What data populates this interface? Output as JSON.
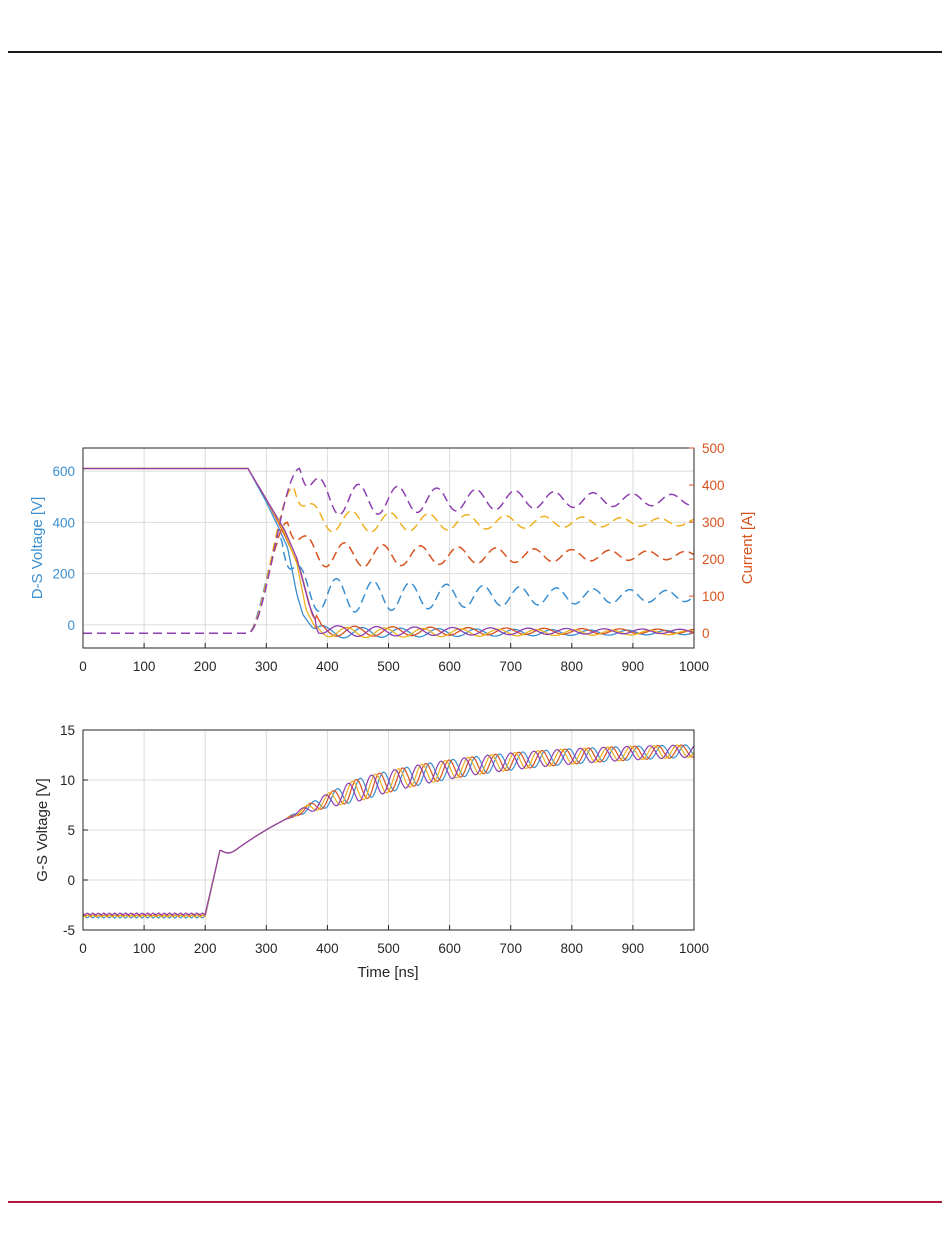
{
  "colors": {
    "blue": "#3b8fd1",
    "red": "#d9531e",
    "yellow": "#edb120",
    "purple": "#8e3fb0",
    "grid": "#dcdcdc",
    "left_axis": "#3b8fd1",
    "right_axis": "#d9531e"
  },
  "chart_data": [
    {
      "type": "line",
      "xlabel": "",
      "ylabel_left": "D-S Voltage [V]",
      "ylabel_right": "Current [A]",
      "xlim": [
        0,
        1000
      ],
      "ylim_left": [
        -90,
        690
      ],
      "ylim_right": [
        -40,
        500
      ],
      "x_ticks": [
        "0",
        "100",
        "200",
        "300",
        "400",
        "500",
        "600",
        "700",
        "800",
        "900",
        "1000"
      ],
      "y_ticks_left": [
        "0",
        "200",
        "400",
        "600"
      ],
      "y_ticks_right": [
        "0",
        "100",
        "200",
        "300",
        "400",
        "500"
      ],
      "grid": true,
      "legend": "none",
      "voltage_series_solid": [
        {
          "color": "blue",
          "points": [
            [
              0,
              610
            ],
            [
              250,
              610
            ],
            [
              270,
              610
            ],
            [
              300,
              480
            ],
            [
              320,
              380
            ],
            [
              335,
              300
            ],
            [
              350,
              120
            ],
            [
              360,
              40
            ],
            [
              375,
              -10
            ],
            [
              400,
              -30
            ],
            [
              450,
              -30
            ],
            [
              1000,
              -30
            ]
          ]
        },
        {
          "color": "red",
          "points": [
            [
              0,
              610
            ],
            [
              250,
              610
            ],
            [
              270,
              610
            ],
            [
              300,
              490
            ],
            [
              330,
              350
            ],
            [
              355,
              220
            ],
            [
              375,
              40
            ],
            [
              390,
              -15
            ],
            [
              420,
              -25
            ],
            [
              1000,
              -25
            ]
          ]
        },
        {
          "color": "yellow",
          "points": [
            [
              0,
              610
            ],
            [
              250,
              610
            ],
            [
              270,
              610
            ],
            [
              300,
              490
            ],
            [
              330,
              360
            ],
            [
              350,
              240
            ],
            [
              365,
              60
            ],
            [
              380,
              -10
            ],
            [
              410,
              -30
            ],
            [
              1000,
              -30
            ]
          ]
        },
        {
          "color": "purple",
          "points": [
            [
              0,
              610
            ],
            [
              250,
              610
            ],
            [
              270,
              610
            ],
            [
              300,
              490
            ],
            [
              330,
              370
            ],
            [
              350,
              260
            ],
            [
              370,
              80
            ],
            [
              385,
              -10
            ],
            [
              420,
              -25
            ],
            [
              1000,
              -25
            ]
          ]
        }
      ],
      "current_series_dashed": [
        {
          "color": "blue",
          "start": 270,
          "peak_x": 325,
          "peak": 255,
          "steady": 100,
          "amp": 55,
          "period": 60
        },
        {
          "color": "red",
          "start": 270,
          "peak_x": 335,
          "peak": 300,
          "steady": 210,
          "amp": 40,
          "period": 62
        },
        {
          "color": "yellow",
          "start": 270,
          "peak_x": 345,
          "peak": 395,
          "steady": 300,
          "amp": 35,
          "period": 63
        },
        {
          "color": "purple",
          "start": 270,
          "peak_x": 355,
          "peak": 445,
          "steady": 360,
          "amp": 50,
          "period": 64
        }
      ]
    },
    {
      "type": "line",
      "xlabel": "Time [ns]",
      "ylabel": "G-S Voltage [V]",
      "xlim": [
        0,
        1000
      ],
      "ylim": [
        -5,
        15
      ],
      "x_ticks": [
        "0",
        "100",
        "200",
        "300",
        "400",
        "500",
        "600",
        "700",
        "800",
        "900",
        "1000"
      ],
      "y_ticks": [
        "-5",
        "0",
        "5",
        "10",
        "15"
      ],
      "grid": true,
      "legend": "none",
      "series": [
        {
          "color": "blue",
          "low": -3.7,
          "phase": 0.0
        },
        {
          "color": "red",
          "low": -3.5,
          "phase": 1.2
        },
        {
          "color": "yellow",
          "low": -3.6,
          "phase": 2.4
        },
        {
          "color": "purple",
          "low": -3.4,
          "phase": 3.6
        }
      ],
      "shape": {
        "rise_start": 200,
        "rise_end": 225,
        "plateau": 3.0,
        "plateau_end": 250,
        "settle": 13.3,
        "osc_start": 330,
        "osc_amp": 1.3,
        "osc_period": 38
      }
    }
  ]
}
